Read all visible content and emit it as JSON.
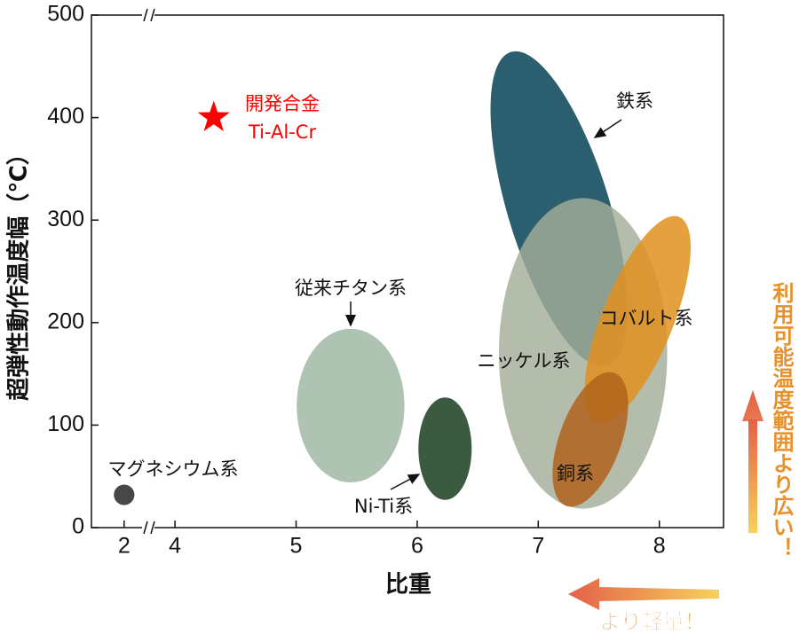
{
  "chart_data": {
    "type": "ellipse",
    "xlabel": "比重",
    "ylabel": "超弾性動作温度幅（℃）",
    "xlim": [
      1.73,
      8.53
    ],
    "x_break": [
      2.2,
      3.78
    ],
    "ylim": [
      0,
      500
    ],
    "xticks": [
      2,
      4,
      5,
      6,
      7,
      8
    ],
    "yticks": [
      0,
      100,
      200,
      300,
      400,
      500
    ],
    "series": [
      {
        "name": "マグネシウム系",
        "x": 2,
        "y": 32,
        "width": 0.17,
        "height": 20,
        "rotation": 0,
        "color": "#474747"
      },
      {
        "name": "従来チタン系",
        "x": 5.45,
        "y": 119,
        "width": 0.89,
        "height": 150,
        "rotation": 0,
        "color": "#aec3b2"
      },
      {
        "name": "Ni-Ti系",
        "x": 6.23,
        "y": 77,
        "width": 0.44,
        "height": 100,
        "rotation": 0,
        "color": "#3b5a40"
      },
      {
        "name": "鉄系",
        "x": 7.17,
        "y": 311,
        "width": 0.84,
        "height": 320,
        "rotation": -17,
        "color": "#2b5f70"
      },
      {
        "name": "ニッケル系",
        "x": 7.37,
        "y": 170,
        "width": 1.39,
        "height": 303,
        "rotation": 0,
        "color": "#a3ad98"
      },
      {
        "name": "コバルト系",
        "x": 7.82,
        "y": 203,
        "width": 0.59,
        "height": 216,
        "rotation": 22,
        "color": "#e0901f"
      },
      {
        "name": "銅系",
        "x": 7.43,
        "y": 86,
        "width": 0.51,
        "height": 138,
        "rotation": 20,
        "color": "#b0631c"
      },
      {
        "name": "開発合金",
        "sublabel": "Ti-Al-Cr",
        "x": 4.32,
        "y": 400,
        "marker": "star",
        "color": "#ff0000"
      }
    ],
    "annotations": {
      "lighter": "より軽量！",
      "wider": "利用可能温度範囲より広い！"
    }
  }
}
